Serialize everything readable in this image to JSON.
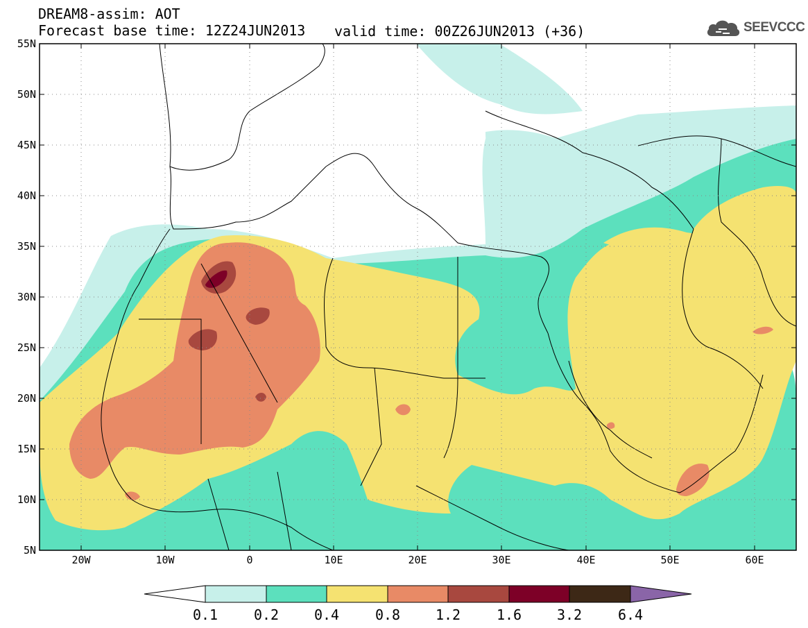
{
  "title": {
    "line1": "DREAM8-assim: AOT",
    "base_time": "Forecast base time: 12Z24JUN2013",
    "valid_time": "valid time: 00Z26JUN2013 (+36)"
  },
  "logo": {
    "text": "SEEVCCC",
    "icon": "cloud-icon"
  },
  "map": {
    "lat_labels": [
      "5N",
      "10N",
      "15N",
      "20N",
      "25N",
      "30N",
      "35N",
      "40N",
      "45N",
      "50N",
      "55N"
    ],
    "lon_labels": [
      "20W",
      "10W",
      "0",
      "10E",
      "20E",
      "30E",
      "40E",
      "50E",
      "60E"
    ],
    "lat_range": [
      5,
      55
    ],
    "lon_range": [
      -25,
      65
    ]
  },
  "colorbar": {
    "labels": [
      "0.1",
      "0.2",
      "0.4",
      "0.8",
      "1.2",
      "1.6",
      "3.2",
      "6.4"
    ],
    "colors": [
      "#ffffff",
      "#c7f0ea",
      "#5ce0bd",
      "#f5e271",
      "#e88a66",
      "#a8483f",
      "#7d0027",
      "#3d2816",
      "#8a65a8"
    ]
  }
}
